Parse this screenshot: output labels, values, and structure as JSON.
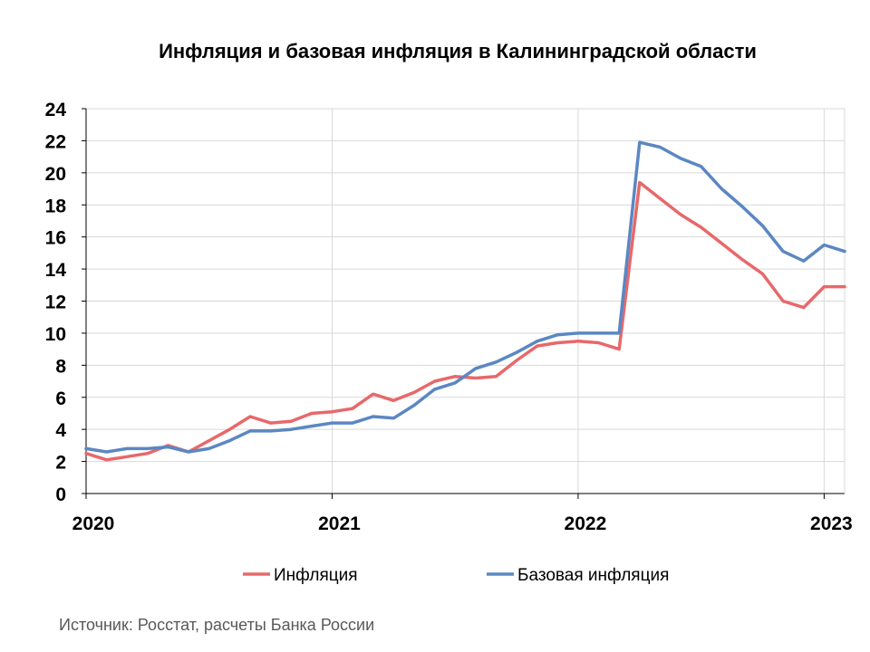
{
  "chart_data": {
    "type": "line",
    "title": "Инфляция и базовая инфляция в Калининградской области",
    "source": "Источник: Росстат, расчеты Банка России",
    "ylim": [
      0,
      24
    ],
    "y_ticks": [
      "0",
      "2",
      "4",
      "6",
      "8",
      "10",
      "12",
      "14",
      "16",
      "18",
      "20",
      "22",
      "24"
    ],
    "x_range": [
      "2020-01",
      "2023-02"
    ],
    "x_ticks": [
      {
        "label": "2020",
        "month": "2020-01"
      },
      {
        "label": "2021",
        "month": "2021-01"
      },
      {
        "label": "2022",
        "month": "2022-01"
      },
      {
        "label": "2023",
        "month": "2023-01"
      }
    ],
    "grid": true,
    "legend": "bottom",
    "months": [
      "2020-01",
      "2020-02",
      "2020-03",
      "2020-04",
      "2020-05",
      "2020-06",
      "2020-07",
      "2020-08",
      "2020-09",
      "2020-10",
      "2020-11",
      "2020-12",
      "2021-01",
      "2021-02",
      "2021-03",
      "2021-04",
      "2021-05",
      "2021-06",
      "2021-07",
      "2021-08",
      "2021-09",
      "2021-10",
      "2021-11",
      "2021-12",
      "2022-01",
      "2022-02",
      "2022-03",
      "2022-04",
      "2022-05",
      "2022-06",
      "2022-07",
      "2022-08",
      "2022-09",
      "2022-10",
      "2022-11",
      "2022-12",
      "2023-01",
      "2023-02"
    ],
    "series": [
      {
        "name": "Инфляция",
        "color": "#E8686A",
        "values": [
          2.5,
          2.1,
          2.3,
          2.5,
          3.0,
          2.6,
          3.3,
          4.0,
          4.8,
          4.4,
          4.5,
          5.0,
          5.1,
          5.3,
          6.2,
          5.8,
          6.3,
          7.0,
          7.3,
          7.2,
          7.3,
          8.3,
          9.2,
          9.4,
          9.5,
          9.4,
          9.0,
          19.4,
          18.4,
          17.4,
          16.6,
          15.6,
          14.6,
          13.7,
          12.0,
          11.6,
          12.9,
          12.9
        ]
      },
      {
        "name": "Базовая инфляция",
        "color": "#5B87C2",
        "values": [
          2.8,
          2.6,
          2.8,
          2.8,
          2.9,
          2.6,
          2.8,
          3.3,
          3.9,
          3.9,
          4.0,
          4.2,
          4.4,
          4.4,
          4.8,
          4.7,
          5.5,
          6.5,
          6.9,
          7.8,
          8.2,
          8.8,
          9.5,
          9.9,
          10.0,
          10.0,
          10.0,
          21.9,
          21.6,
          20.9,
          20.4,
          19.0,
          17.9,
          16.7,
          15.1,
          14.5,
          15.5,
          15.1
        ]
      }
    ]
  }
}
